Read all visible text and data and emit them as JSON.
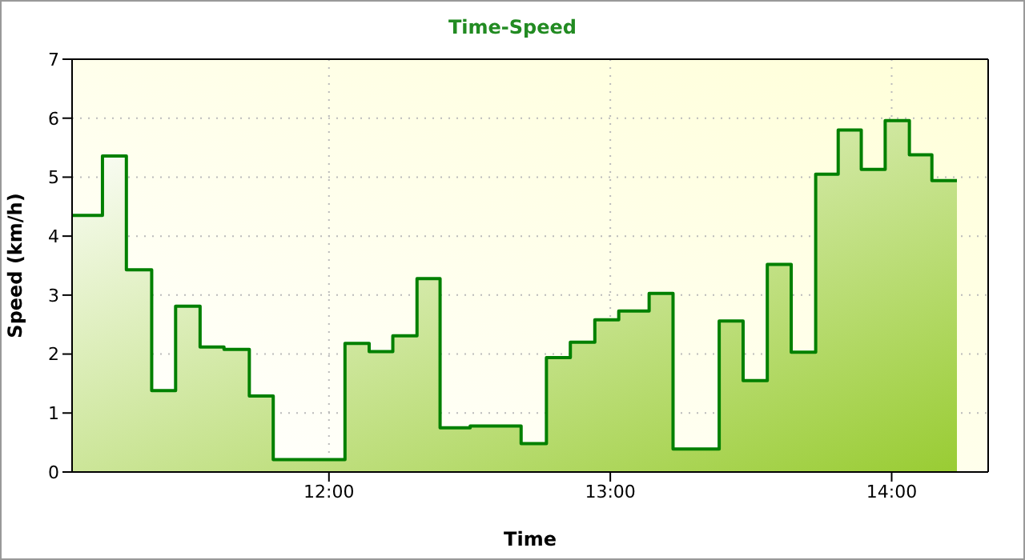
{
  "chart_data": {
    "type": "area",
    "title": "Time-Speed",
    "xlabel": "Time",
    "ylabel": "Speed (km/h)",
    "x": [
      11.087,
      11.195,
      11.195,
      11.28,
      11.28,
      11.37,
      11.37,
      11.455,
      11.455,
      11.542,
      11.542,
      11.627,
      11.627,
      11.717,
      11.717,
      11.802,
      11.802,
      12.057,
      12.057,
      12.143,
      12.143,
      12.227,
      12.227,
      12.313,
      12.313,
      12.395,
      12.395,
      12.502,
      12.502,
      12.683,
      12.683,
      12.773,
      12.773,
      12.858,
      12.858,
      12.945,
      12.945,
      13.03,
      13.03,
      13.138,
      13.138,
      13.223,
      13.223,
      13.387,
      13.387,
      13.472,
      13.472,
      13.558,
      13.558,
      13.643,
      13.643,
      13.73,
      13.73,
      13.81,
      13.81,
      13.892,
      13.892,
      13.977,
      13.977,
      14.063,
      14.063,
      14.143,
      14.143,
      14.232
    ],
    "series": [
      {
        "color": "#008000",
        "values": [
          4.35,
          4.35,
          5.36,
          5.36,
          3.43,
          3.43,
          1.38,
          1.38,
          2.81,
          2.81,
          2.12,
          2.12,
          2.08,
          2.08,
          1.29,
          1.29,
          0.21,
          0.21,
          2.18,
          2.18,
          2.04,
          2.04,
          2.31,
          2.31,
          3.28,
          3.28,
          0.75,
          0.75,
          0.78,
          0.78,
          0.48,
          0.48,
          1.94,
          1.94,
          2.2,
          2.2,
          2.58,
          2.58,
          2.73,
          2.73,
          3.03,
          3.03,
          0.39,
          0.39,
          2.56,
          2.56,
          1.55,
          1.55,
          3.52,
          3.52,
          2.03,
          2.03,
          5.05,
          5.05,
          5.8,
          5.8,
          5.13,
          5.13,
          5.96,
          5.96,
          5.38,
          5.38,
          4.94,
          4.94
        ]
      }
    ],
    "xlim": [
      11.087,
      14.343
    ],
    "xticks": [
      {
        "value": 12,
        "label": "12:00"
      },
      {
        "value": 13,
        "label": "13:00"
      },
      {
        "value": 14,
        "label": "14:00"
      }
    ],
    "ylim": [
      0,
      7
    ],
    "yticks": [
      0,
      1,
      2,
      3,
      4,
      5,
      6,
      7
    ],
    "grid": true
  }
}
